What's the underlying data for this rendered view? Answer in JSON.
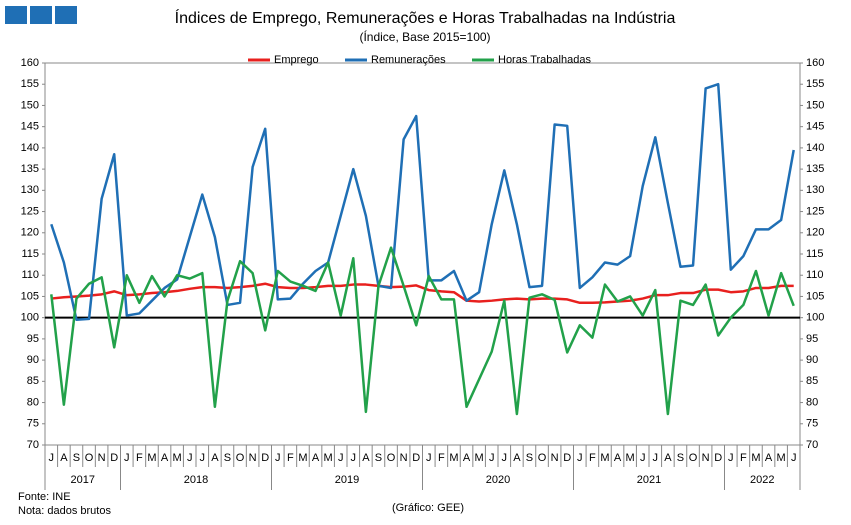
{
  "chart_data": {
    "type": "line",
    "title": "Índices de Emprego, Remunerações e Horas Trabalhadas na Indústria",
    "subtitle": "(Índice, Base 2015=100)",
    "groups": [
      {
        "year": "2017",
        "months": [
          "J",
          "A",
          "S",
          "O",
          "N",
          "D"
        ]
      },
      {
        "year": "2018",
        "months": [
          "J",
          "F",
          "M",
          "A",
          "M",
          "J",
          "J",
          "A",
          "S",
          "O",
          "N",
          "D"
        ]
      },
      {
        "year": "2019",
        "months": [
          "J",
          "F",
          "M",
          "A",
          "M",
          "J",
          "J",
          "A",
          "S",
          "O",
          "N",
          "D"
        ]
      },
      {
        "year": "2020",
        "months": [
          "J",
          "F",
          "M",
          "A",
          "M",
          "J",
          "J",
          "A",
          "S",
          "O",
          "N",
          "D"
        ]
      },
      {
        "year": "2021",
        "months": [
          "J",
          "F",
          "M",
          "A",
          "M",
          "J",
          "J",
          "A",
          "S",
          "O",
          "N",
          "D"
        ]
      },
      {
        "year": "2022",
        "months": [
          "J",
          "F",
          "M",
          "A",
          "M",
          "J"
        ]
      }
    ],
    "series": [
      {
        "name": "Emprego",
        "color": "#e8201e",
        "values": [
          104.5,
          104.8,
          105,
          105.2,
          105.5,
          106.2,
          105.3,
          105.5,
          105.8,
          106,
          106.3,
          106.8,
          107.2,
          107.2,
          107,
          107.2,
          107.5,
          108,
          107.2,
          107,
          107,
          107.2,
          107.5,
          107.5,
          107.8,
          107.8,
          107.5,
          107.2,
          107.3,
          107.6,
          106.5,
          106.2,
          106,
          104,
          103.8,
          104,
          104.3,
          104.5,
          104.3,
          104.5,
          104.5,
          104.3,
          103.5,
          103.5,
          103.6,
          103.8,
          104,
          104.5,
          105.3,
          105.3,
          105.8,
          105.8,
          106.6,
          106.6,
          106,
          106.2,
          107,
          107,
          107.5,
          107.5
        ]
      },
      {
        "name": "Remunerações",
        "color": "#1f6fb5",
        "values": [
          122,
          113,
          99.5,
          99.7,
          128,
          138.5,
          100.5,
          101,
          104,
          107,
          109,
          119,
          129,
          119,
          103,
          103.5,
          135.5,
          144.5,
          104.3,
          104.5,
          108,
          111,
          113,
          124,
          135,
          124,
          107.5,
          107,
          142,
          147.5,
          108.8,
          108.8,
          111,
          104,
          106,
          122,
          134.7,
          122,
          107.2,
          107.5,
          145.5,
          145.2,
          107,
          109.5,
          113,
          112.5,
          114.5,
          131,
          142.5,
          127,
          112,
          112.3,
          154,
          155,
          111.3,
          114.5,
          120.8,
          120.8,
          123,
          139.5
        ]
      },
      {
        "name": "Horas Trabalhadas",
        "color": "#22a14a",
        "values": [
          105.5,
          79.5,
          104.5,
          108,
          109.5,
          93,
          110,
          103.5,
          109.8,
          105,
          110,
          109.2,
          110.5,
          79,
          104,
          113.3,
          110.5,
          97,
          111,
          108.5,
          107.5,
          106.3,
          113,
          100.5,
          114,
          77.8,
          107.5,
          116.5,
          107.5,
          98.2,
          109.8,
          104.3,
          104.3,
          79,
          85.5,
          92,
          104,
          77.3,
          104.7,
          105.5,
          104.2,
          91.8,
          98.2,
          95.3,
          107.8,
          103.8,
          105,
          100.5,
          106.5,
          77.3,
          104,
          103,
          107.8,
          95.8,
          100,
          103,
          111,
          100.5,
          110.5,
          102.8
        ]
      }
    ],
    "reference_line": 100,
    "ylim": [
      70,
      160
    ],
    "yticks": [
      70,
      75,
      80,
      85,
      90,
      95,
      100,
      105,
      110,
      115,
      120,
      125,
      130,
      135,
      140,
      145,
      150,
      155,
      160
    ],
    "y2lim": [
      70,
      160
    ],
    "y2ticks": [
      70,
      75,
      80,
      85,
      90,
      95,
      100,
      105,
      110,
      115,
      120,
      125,
      130,
      135,
      140,
      145,
      150,
      155,
      160
    ],
    "grid": false,
    "legend": "top",
    "source": "Fonte: INE",
    "note": "Nota: dados brutos",
    "credit": "(Gráfico: GEE)"
  }
}
